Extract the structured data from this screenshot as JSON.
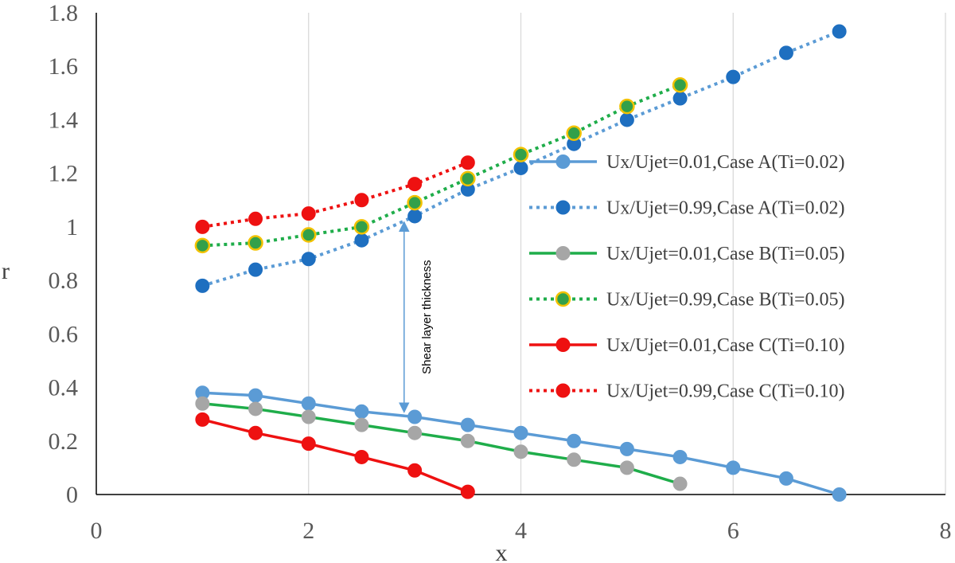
{
  "chart_data": {
    "type": "line",
    "xlabel": "x",
    "ylabel": "r",
    "xlim": [
      0,
      8
    ],
    "ylim": [
      0,
      1.8
    ],
    "xticks": [
      0,
      2,
      4,
      6,
      8
    ],
    "yticks": [
      0,
      0.2,
      0.4,
      0.6,
      0.8,
      1,
      1.2,
      1.4,
      1.6,
      1.8
    ],
    "xtick_labels": [
      "0",
      "2",
      "4",
      "6",
      "8"
    ],
    "ytick_labels": [
      "0",
      "0.2",
      "0.4",
      "0.6",
      "0.8",
      "1",
      "1.2",
      "1.4",
      "1.6",
      "1.8"
    ],
    "grid": "vertical",
    "legend_position": "right",
    "series": [
      {
        "name": "Ux/Ujet=0.01,Case A(Ti=0.02)",
        "line_color": "#5b9bd5",
        "marker_color": "#5b9bd5",
        "marker_edge": "#5b9bd5",
        "dashed": false,
        "x": [
          1,
          1.5,
          2,
          2.5,
          3,
          3.5,
          4,
          4.5,
          5,
          5.5,
          6,
          6.5,
          7
        ],
        "y": [
          0.38,
          0.37,
          0.34,
          0.31,
          0.29,
          0.26,
          0.23,
          0.2,
          0.17,
          0.14,
          0.1,
          0.06,
          0.0
        ]
      },
      {
        "name": "Ux/Ujet=0.99,Case A(Ti=0.02)",
        "line_color": "#5b9bd5",
        "marker_color": "#1e6fc0",
        "marker_edge": "#1e6fc0",
        "dashed": true,
        "x": [
          1,
          1.5,
          2,
          2.5,
          3,
          3.5,
          4,
          4.5,
          5,
          5.5,
          6,
          6.5,
          7
        ],
        "y": [
          0.78,
          0.84,
          0.88,
          0.95,
          1.04,
          1.14,
          1.22,
          1.31,
          1.4,
          1.48,
          1.56,
          1.65,
          1.73
        ]
      },
      {
        "name": "Ux/Ujet=0.01,Case B(Ti=0.05)",
        "line_color": "#1fad4a",
        "marker_color": "#a6a6a6",
        "marker_edge": "#a6a6a6",
        "dashed": false,
        "x": [
          1,
          1.5,
          2,
          2.5,
          3,
          3.5,
          4,
          4.5,
          5,
          5.5
        ],
        "y": [
          0.34,
          0.32,
          0.29,
          0.26,
          0.23,
          0.2,
          0.16,
          0.13,
          0.1,
          0.04
        ]
      },
      {
        "name": "Ux/Ujet=0.99,Case B(Ti=0.05)",
        "line_color": "#1fad4a",
        "marker_color": "#33a04a",
        "marker_edge": "#f2c200",
        "dashed": true,
        "x": [
          1,
          1.5,
          2,
          2.5,
          3,
          3.5,
          4,
          4.5,
          5,
          5.5
        ],
        "y": [
          0.93,
          0.94,
          0.97,
          1.0,
          1.09,
          1.18,
          1.27,
          1.35,
          1.45,
          1.53
        ]
      },
      {
        "name": "Ux/Ujet=0.01,Case C(Ti=0.10)",
        "line_color": "#ee1111",
        "marker_color": "#ee1111",
        "marker_edge": "#ee1111",
        "dashed": false,
        "x": [
          1,
          1.5,
          2,
          2.5,
          3,
          3.5
        ],
        "y": [
          0.28,
          0.23,
          0.19,
          0.14,
          0.09,
          0.01
        ]
      },
      {
        "name": "Ux/Ujet=0.99,Case C(Ti=0.10)",
        "line_color": "#ee1111",
        "marker_color": "#ee1111",
        "marker_edge": "#ee1111",
        "dashed": true,
        "x": [
          1,
          1.5,
          2,
          2.5,
          3,
          3.5
        ],
        "y": [
          1.0,
          1.03,
          1.05,
          1.1,
          1.16,
          1.24
        ]
      }
    ],
    "annotations": [
      {
        "text": "Shear layer thickness",
        "type": "double-arrow",
        "x": 2.9,
        "y_from": 0.29,
        "y_to": 1.03,
        "color": "#5b9bd5"
      }
    ]
  }
}
